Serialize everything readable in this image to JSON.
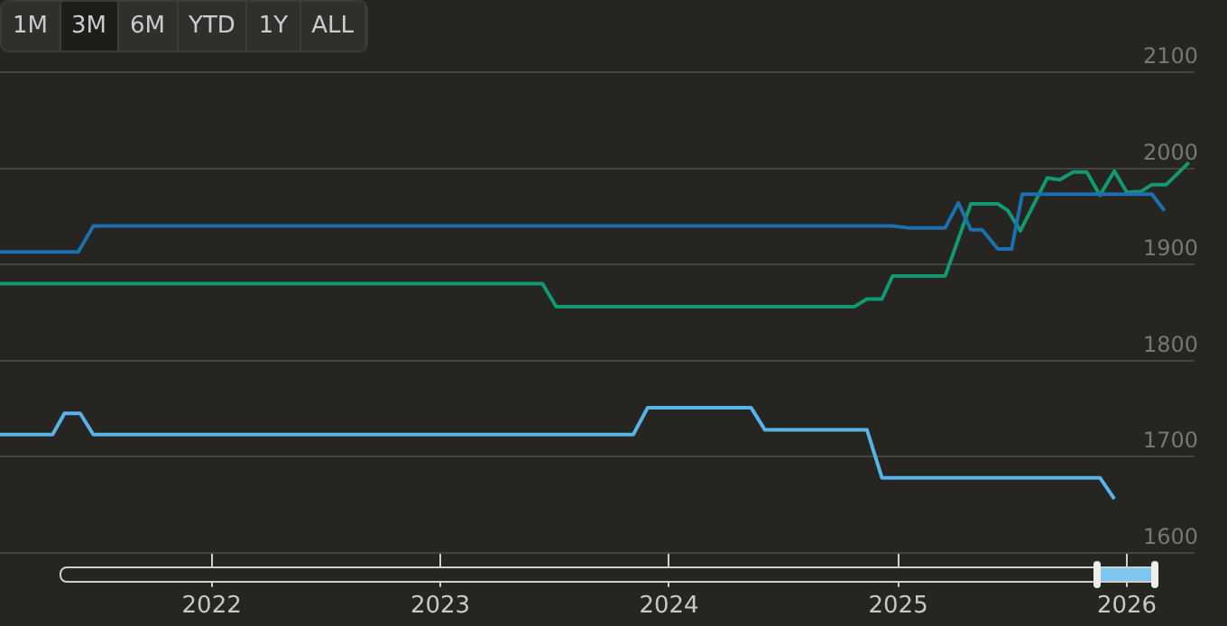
{
  "chart_data": {
    "type": "line",
    "annotations": [
      "1M",
      "3M",
      "6M",
      "YTD",
      "1Y",
      "ALL"
    ],
    "xlim": [
      "2021-01-28",
      "2026-04-19"
    ],
    "xticks": [
      "2022",
      "2023",
      "2024",
      "2025",
      "2026"
    ],
    "ylim": [
      1600,
      2100
    ],
    "yticks": [
      1600,
      1700,
      1800,
      1900,
      2000,
      2100
    ],
    "grid": "y",
    "legend": false,
    "marker": "none",
    "line_style": "solid",
    "series": [
      {
        "color": "#1b70ad",
        "x": [
          "2021-01-28",
          "2021-06-02",
          "2021-06-26",
          "2024-12-23",
          "2025-01-17",
          "2025-03-17",
          "2025-04-07",
          "2025-04-27",
          "2025-05-15",
          "2025-06-09",
          "2025-07-01",
          "2025-07-18",
          "2026-02-10",
          "2026-03-02"
        ],
        "values": [
          1913,
          1913,
          1940,
          1940,
          1938,
          1938,
          1964,
          1936,
          1936,
          1916,
          1916,
          1973,
          1973,
          1956
        ]
      },
      {
        "color": "#0f9a74",
        "x": [
          "2021-01-28",
          "2023-06-13",
          "2023-07-05",
          "2024-10-23",
          "2024-11-12",
          "2024-12-06",
          "2024-12-23",
          "2025-03-17",
          "2025-04-27",
          "2025-06-09",
          "2025-06-25",
          "2025-07-15",
          "2025-08-27",
          "2025-09-16",
          "2025-10-07",
          "2025-10-29",
          "2025-11-19",
          "2025-12-12",
          "2026-01-01",
          "2026-01-24",
          "2026-02-10",
          "2026-03-05",
          "2026-04-10"
        ],
        "values": [
          1880,
          1880,
          1856,
          1856,
          1864,
          1864,
          1888,
          1888,
          1963,
          1963,
          1956,
          1935,
          1990,
          1988,
          1996,
          1996,
          1972,
          1997,
          1975,
          1976,
          1983,
          1983,
          2006
        ]
      },
      {
        "color": "#58b3e6",
        "x": [
          "2021-01-28",
          "2021-04-22",
          "2021-05-11",
          "2021-06-05",
          "2021-06-26",
          "2023-11-05",
          "2023-11-28",
          "2024-05-11",
          "2024-06-02",
          "2024-11-12",
          "2024-12-06",
          "2025-11-19",
          "2025-12-12"
        ],
        "values": [
          1723,
          1723,
          1745,
          1745,
          1723,
          1723,
          1751,
          1751,
          1728,
          1728,
          1678,
          1678,
          1656
        ]
      }
    ]
  }
}
